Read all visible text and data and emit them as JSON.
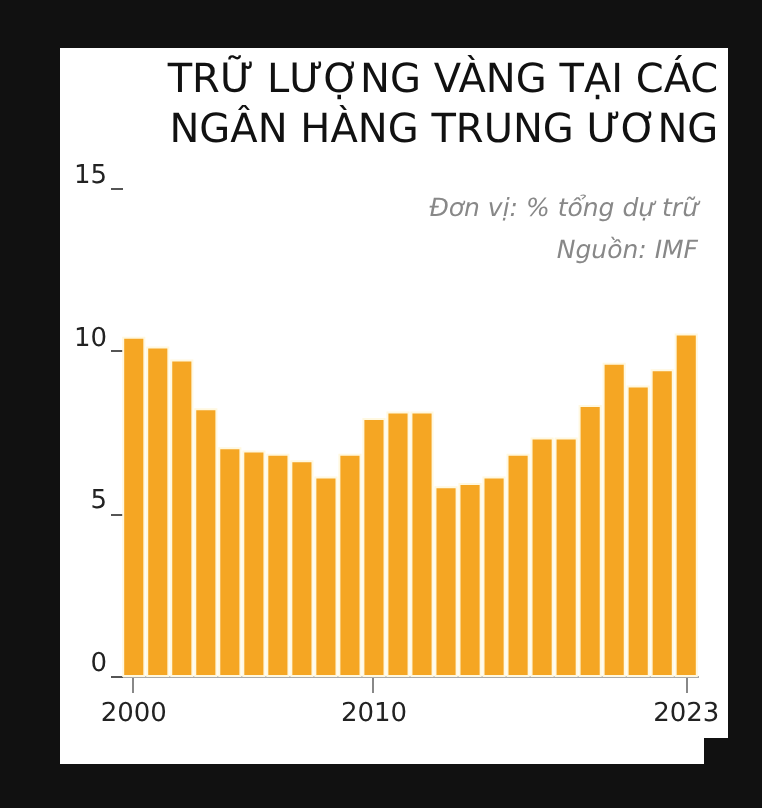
{
  "chart_data": {
    "type": "bar",
    "title": "TRỮ LƯỢNG VÀNG TẠI CÁC\nNGÂN HÀNG TRUNG ƯƠNG",
    "annotations": [
      "Đơn vị: % tổng dự trữ",
      "Nguồn: IMF"
    ],
    "categories": [
      "2000",
      null,
      null,
      null,
      null,
      null,
      null,
      null,
      null,
      null,
      "2010",
      null,
      null,
      null,
      null,
      null,
      null,
      null,
      null,
      null,
      null,
      null,
      null,
      "2023"
    ],
    "values": [
      10.4,
      10.1,
      9.7,
      8.2,
      7.0,
      6.9,
      6.8,
      6.6,
      6.1,
      6.8,
      7.9,
      8.1,
      8.1,
      5.8,
      5.9,
      6.1,
      6.8,
      7.3,
      7.3,
      8.3,
      9.6,
      8.9,
      9.4,
      10.5
    ],
    "color": "#f5a623",
    "ylim": [
      0,
      15
    ],
    "yticks": [
      0,
      5,
      10,
      15
    ]
  }
}
